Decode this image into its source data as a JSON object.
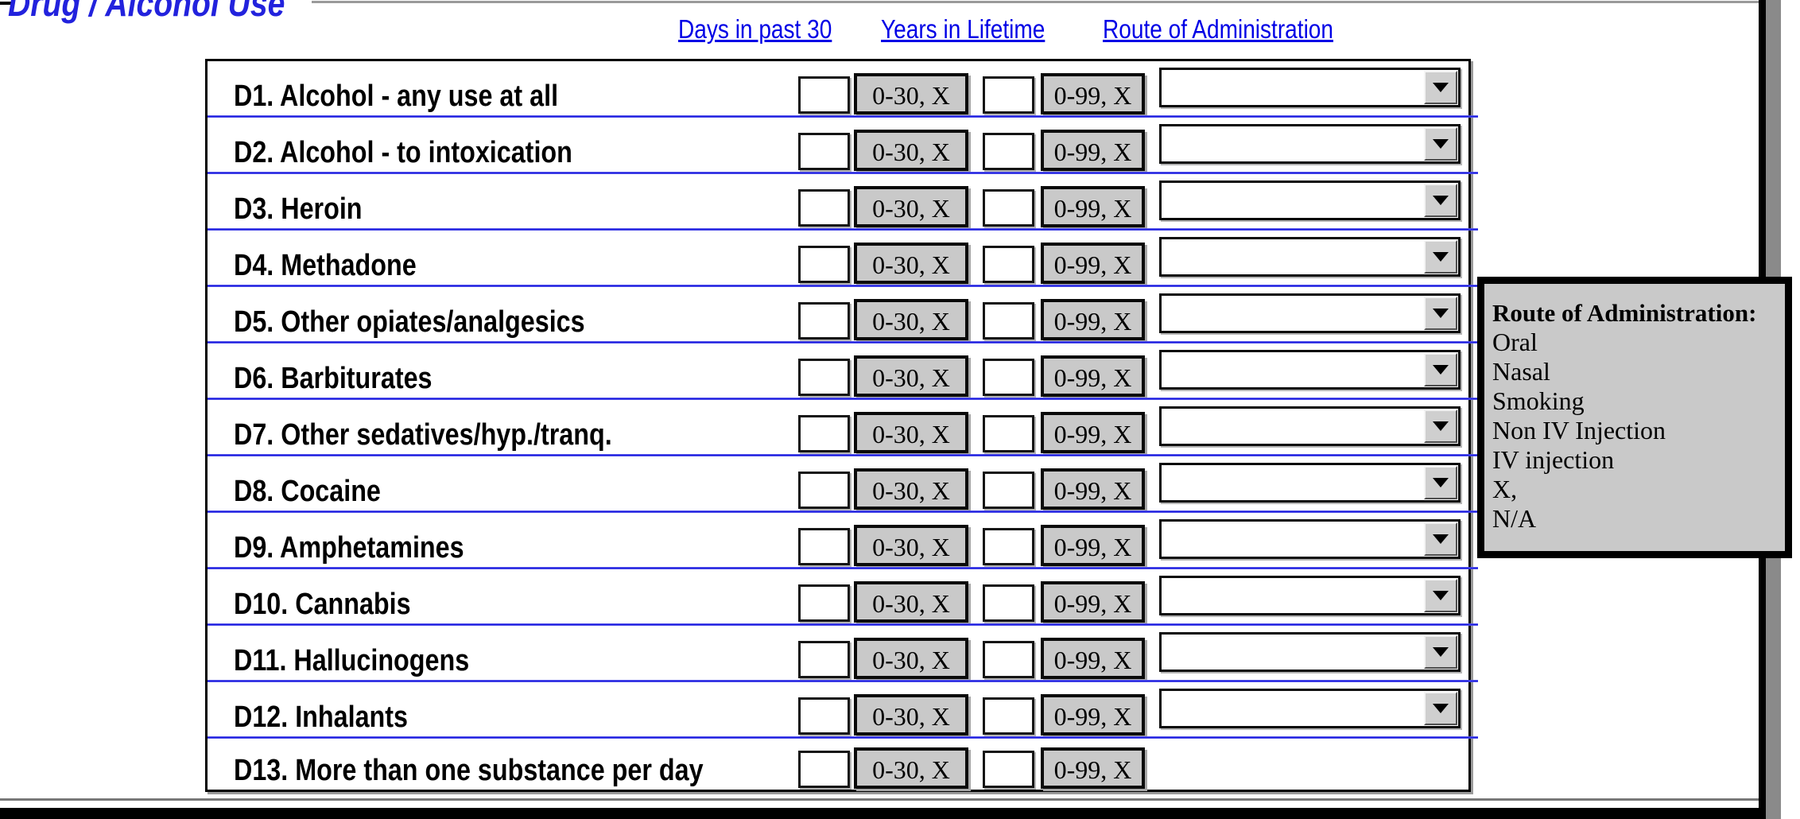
{
  "page": {
    "title": "Drug / Alcohol Use"
  },
  "header": {
    "links": [
      {
        "label": "Days in past 30"
      },
      {
        "label": "Years in Lifetime"
      },
      {
        "label": "Route of Administration"
      }
    ]
  },
  "table": {
    "days_hint": "0-30, X",
    "years_hint": "0-99, X",
    "input_value": "",
    "dropdown_value": "",
    "rows": [
      {
        "label": "D1. Alcohol - any use at all",
        "dropdown": true
      },
      {
        "label": "D2. Alcohol - to intoxication",
        "dropdown": true
      },
      {
        "label": "D3. Heroin",
        "dropdown": true
      },
      {
        "label": "D4. Methadone",
        "dropdown": true
      },
      {
        "label": "D5. Other opiates/analgesics",
        "dropdown": true
      },
      {
        "label": "D6. Barbiturates",
        "dropdown": true
      },
      {
        "label": "D7. Other sedatives/hyp./tranq.",
        "dropdown": true
      },
      {
        "label": "D8. Cocaine",
        "dropdown": true
      },
      {
        "label": "D9. Amphetamines",
        "dropdown": true
      },
      {
        "label": "D10. Cannabis",
        "dropdown": true
      },
      {
        "label": "D11. Hallucinogens",
        "dropdown": true
      },
      {
        "label": "D12. Inhalants",
        "dropdown": true
      },
      {
        "label": "D13. More than one substance per day",
        "dropdown": false
      }
    ]
  },
  "route_panel": {
    "title": "Route of Administration:",
    "items": [
      "Oral",
      "Nasal",
      "Smoking",
      "Non IV Injection",
      "IV injection",
      "X,",
      "N/A"
    ]
  },
  "colors": {
    "title_blue": "#2222dd",
    "link_blue": "#0000e6",
    "separator_blue": "#1d1de0",
    "hint_gray": "#c9c9c9",
    "panel_gray": "#c9c9c9",
    "frame_gray": "#8a8a8a",
    "frame_black": "#000000"
  }
}
